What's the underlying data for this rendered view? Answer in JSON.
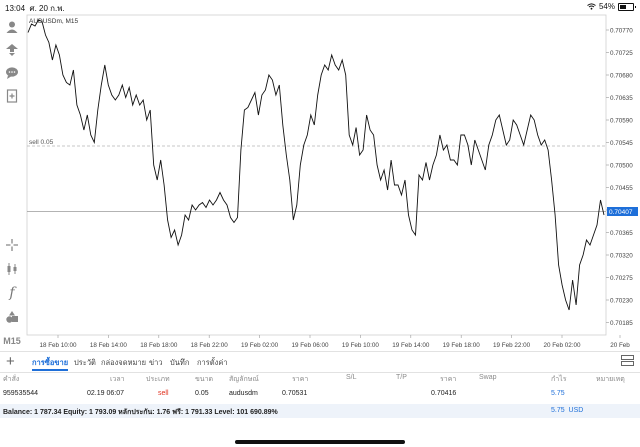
{
  "status": {
    "time": "13:04",
    "date": "ศ. 20 ก.พ.",
    "battery": "54%"
  },
  "chart": {
    "title": "AUDUSDm, M15",
    "sell_label": "sell 0.05",
    "current_price": "0.70407",
    "y_ticks": [
      "0.70770",
      "0.70725",
      "0.70680",
      "0.70635",
      "0.70590",
      "0.70545",
      "0.70500",
      "0.70455",
      "0.70410",
      "0.70365",
      "0.70320",
      "0.70275",
      "0.70230",
      "0.70185"
    ],
    "x_ticks": [
      "18 Feb 10:00",
      "18 Feb 14:00",
      "18 Feb 18:00",
      "18 Feb 22:00",
      "19 Feb 02:00",
      "19 Feb 06:00",
      "19 Feb 10:00",
      "19 Feb 14:00",
      "19 Feb 18:00",
      "19 Feb 22:00",
      "20 Feb 02:00",
      "20 Feb"
    ]
  },
  "chart_data": {
    "type": "line",
    "title": "AUDUSDm, M15",
    "ylim": [
      0.7016,
      0.708
    ],
    "sell_level": 0.70538,
    "current_price": 0.70407,
    "x_labels": [
      "18 Feb 10:00",
      "18 Feb 14:00",
      "18 Feb 18:00",
      "18 Feb 22:00",
      "19 Feb 02:00",
      "19 Feb 06:00",
      "19 Feb 10:00",
      "19 Feb 14:00",
      "19 Feb 18:00",
      "19 Feb 22:00",
      "20 Feb 02:00",
      "20 Feb"
    ],
    "values": [
      0.70765,
      0.70782,
      0.70778,
      0.7079,
      0.70787,
      0.7076,
      0.70745,
      0.7071,
      0.7074,
      0.7072,
      0.7068,
      0.70665,
      0.7066,
      0.7069,
      0.7062,
      0.706,
      0.7057,
      0.706,
      0.7056,
      0.70545,
      0.7061,
      0.7066,
      0.707,
      0.7066,
      0.7064,
      0.7063,
      0.7064,
      0.7066,
      0.70635,
      0.70655,
      0.7062,
      0.7064,
      0.7062,
      0.7063,
      0.7059,
      0.7061,
      0.705,
      0.7047,
      0.7051,
      0.7046,
      0.7039,
      0.70355,
      0.7037,
      0.7034,
      0.7036,
      0.704,
      0.7039,
      0.7042,
      0.7041,
      0.7042,
      0.70425,
      0.70415,
      0.7043,
      0.7042,
      0.7043,
      0.70445,
      0.7043,
      0.7042,
      0.70395,
      0.70385,
      0.70395,
      0.7053,
      0.7061,
      0.70615,
      0.7063,
      0.70645,
      0.706,
      0.7064,
      0.7065,
      0.7068,
      0.7067,
      0.7064,
      0.7066,
      0.7058,
      0.7052,
      0.7047,
      0.7039,
      0.7042,
      0.705,
      0.7054,
      0.7056,
      0.706,
      0.7058,
      0.7064,
      0.7068,
      0.707,
      0.7069,
      0.7072,
      0.707,
      0.7069,
      0.7071,
      0.7068,
      0.7056,
      0.7054,
      0.70575,
      0.7052,
      0.7053,
      0.706,
      0.7057,
      0.7056,
      0.705,
      0.7047,
      0.7049,
      0.7045,
      0.7051,
      0.7046,
      0.7046,
      0.7044,
      0.7047,
      0.704,
      0.7037,
      0.7036,
      0.7048,
      0.7047,
      0.70505,
      0.7047,
      0.705,
      0.7052,
      0.7056,
      0.7053,
      0.7054,
      0.7051,
      0.7051,
      0.705,
      0.7056,
      0.7056,
      0.7054,
      0.705,
      0.7055,
      0.7053,
      0.7051,
      0.7049,
      0.7054,
      0.7056,
      0.7059,
      0.706,
      0.7057,
      0.7054,
      0.7055,
      0.7059,
      0.7058,
      0.7056,
      0.7054,
      0.7057,
      0.706,
      0.7059,
      0.7056,
      0.7054,
      0.7055,
      0.7053,
      0.7047,
      0.704,
      0.703,
      0.7026,
      0.7023,
      0.7021,
      0.7027,
      0.7022,
      0.703,
      0.7032,
      0.7035,
      0.7034,
      0.7036,
      0.7038,
      0.7043,
      0.704
    ]
  },
  "toolbar": {
    "timeframe": "M15"
  },
  "tabs": [
    "การซื้อขาย",
    "ประวัติ",
    "กล่องจดหมาย",
    "ข่าว",
    "บันทึก",
    "การตั้งค่า"
  ],
  "table": {
    "headers": [
      "คำสั่ง",
      "เวลา",
      "ประเภท",
      "ขนาด",
      "สัญลักษณ์",
      "ราคา",
      "S/L",
      "T/P",
      "ราคา",
      "Swap",
      "กำไร",
      "หมายเหตุ"
    ],
    "row": {
      "order": "959535544",
      "time": "02.19 06:07",
      "type": "sell",
      "size": "0.05",
      "symbol": "audusdm",
      "open_price": "0.70531",
      "sl": "",
      "tp": "",
      "price": "0.70416",
      "swap": "",
      "profit": "5.75",
      "comment": ""
    }
  },
  "balance": {
    "text": "Balance: 1 787.34 Equity: 1 793.09 หลักประกัน: 1.76 ฟรี: 1 791.33 Level: 101 690.89%",
    "profit": "5.75",
    "currency": "USD"
  },
  "colors": {
    "accent": "#1e6fd9",
    "sell": "#e0301e",
    "line": "#111111"
  }
}
